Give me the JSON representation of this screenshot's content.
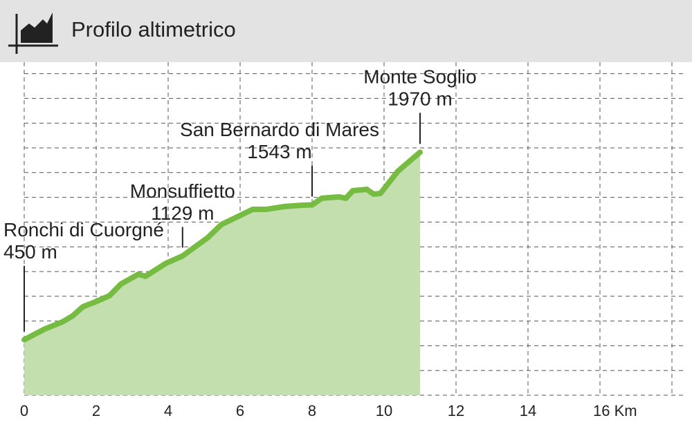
{
  "header": {
    "title": "Profilo altimetrico"
  },
  "chart_data": {
    "type": "area",
    "x": [
      0,
      0.58,
      1.06,
      1.35,
      1.63,
      2.02,
      2.37,
      2.69,
      3.17,
      3.37,
      3.94,
      4.4,
      4.62,
      5.1,
      5.48,
      6.35,
      6.73,
      7.21,
      7.69,
      8.0,
      8.27,
      8.75,
      8.94,
      9.13,
      9.52,
      9.71,
      9.9,
      10.38,
      11.0
    ],
    "values": [
      450,
      538,
      594,
      644,
      717,
      762,
      807,
      902,
      980,
      964,
      1070,
      1129,
      1176,
      1277,
      1384,
      1507,
      1507,
      1529,
      1540,
      1543,
      1597,
      1608,
      1597,
      1658,
      1669,
      1630,
      1636,
      1815,
      1970
    ],
    "color": "#76bc43",
    "fill": "#c4dfae",
    "xlim": [
      0,
      18
    ],
    "ylim": [
      0,
      2700
    ],
    "xticks": [
      0,
      2,
      4,
      6,
      8,
      10,
      12,
      14,
      {
        "value": 16,
        "label": "16 Km"
      }
    ],
    "grid": true,
    "annotations": [
      {
        "name": "Ronchi di Cuorgné",
        "x": 0,
        "value": 450,
        "value_label": "450 m"
      },
      {
        "name": "Monsuffietto",
        "x": 4.4,
        "value": 1129,
        "value_label": "1129 m"
      },
      {
        "name": "San Bernardo di Mares",
        "x": 8.0,
        "value": 1543,
        "value_label": "1543 m"
      },
      {
        "name": "Monte Soglio",
        "x": 11.0,
        "value": 1970,
        "value_label": "1970 m"
      }
    ]
  }
}
